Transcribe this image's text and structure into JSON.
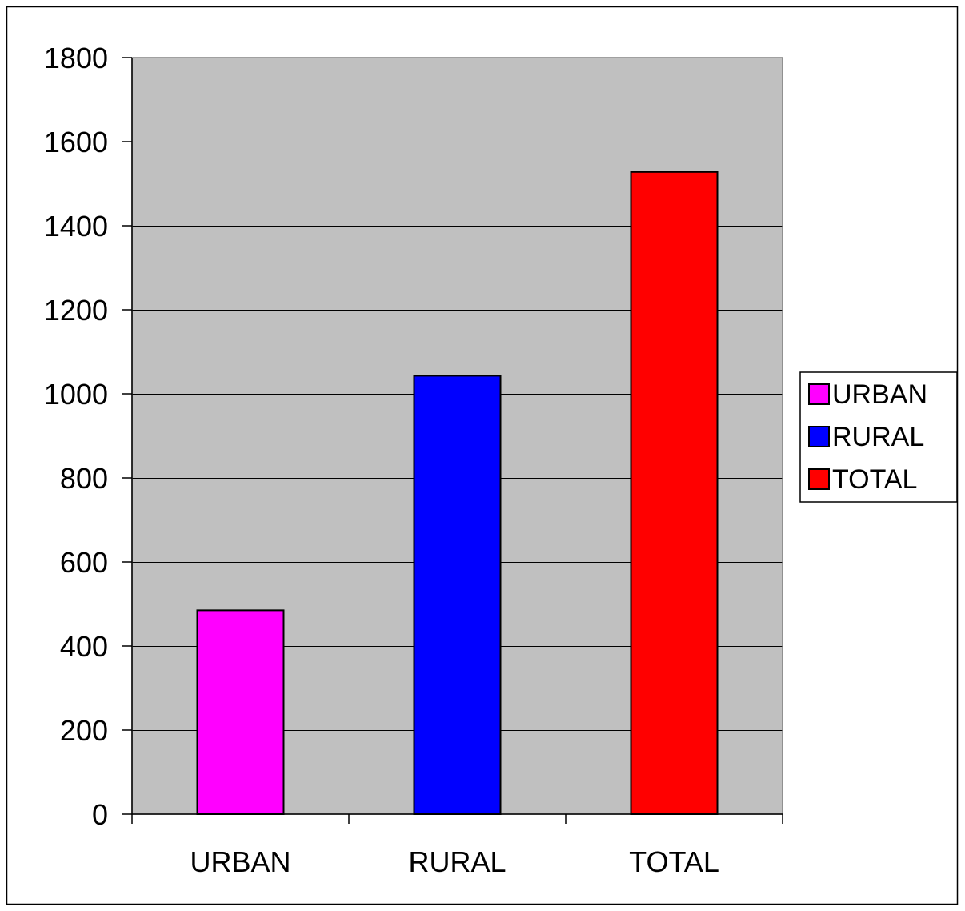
{
  "chart_data": {
    "type": "bar",
    "title": "",
    "xlabel": "",
    "ylabel": "",
    "categories": [
      "URBAN",
      "RURAL",
      "TOTAL"
    ],
    "series": [
      {
        "name": "URBAN",
        "category": "URBAN",
        "value": 485,
        "color": "#ff00ff"
      },
      {
        "name": "RURAL",
        "category": "RURAL",
        "value": 1043,
        "color": "#0000ff"
      },
      {
        "name": "TOTAL",
        "category": "TOTAL",
        "value": 1528,
        "color": "#ff0000"
      }
    ],
    "values": [
      485,
      1043,
      1528
    ],
    "ylim": [
      0,
      1800
    ],
    "yticks": [
      0,
      200,
      400,
      600,
      800,
      1000,
      1200,
      1400,
      1600,
      1800
    ],
    "grid": true,
    "plot_background": "#c0c0c0",
    "legend": {
      "position": "right",
      "entries": [
        "URBAN",
        "RURAL",
        "TOTAL"
      ]
    }
  }
}
